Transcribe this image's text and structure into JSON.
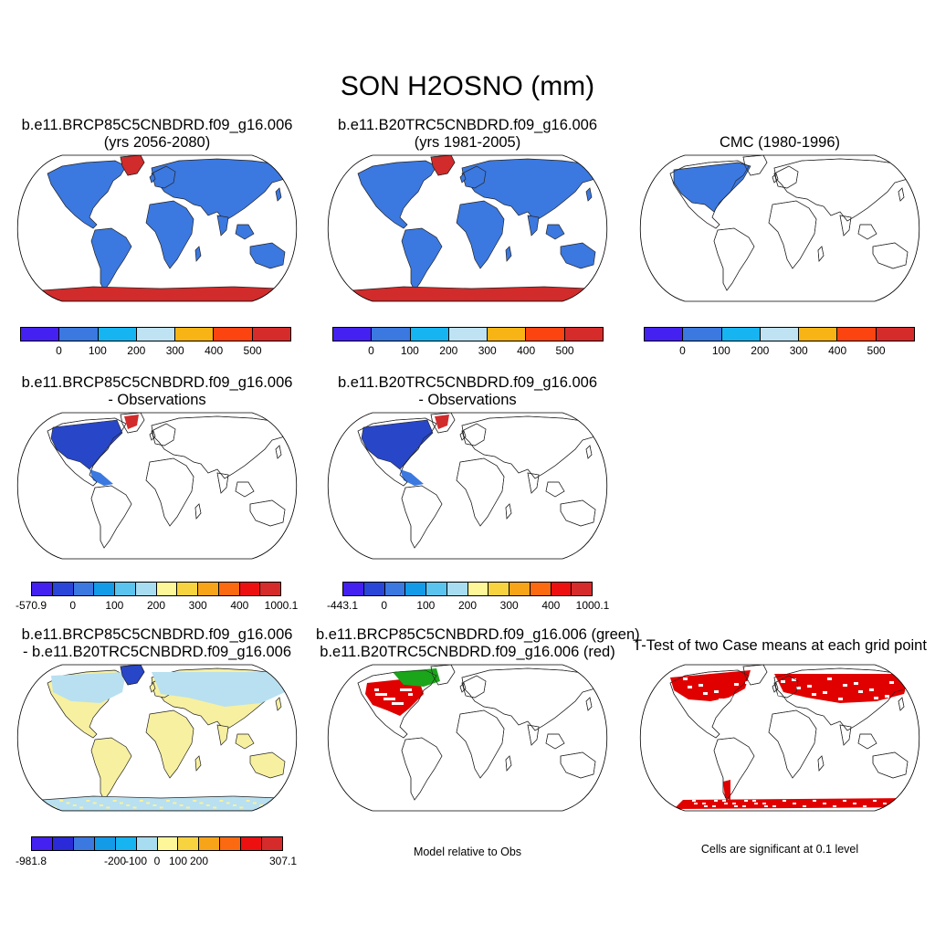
{
  "title": "SON H2OSNO (mm)",
  "colors": {
    "land_outline": "#222222",
    "continent_fill_blue": "#3b78e0",
    "ice_red": "#d22b2b",
    "diff_blue_dark": "#2846c8",
    "diff_light_blue": "#b8e0f0",
    "diff_yellow": "#f7f0a0",
    "green": "#1aa51a",
    "red": "#e00000"
  },
  "row1": {
    "panel1": {
      "line1": "b.e11.BRCP85C5CNBDRD.f09_g16.006",
      "line2": "(yrs 2056-2080)"
    },
    "panel2": {
      "line1": "b.e11.B20TRC5CNBDRD.f09_g16.006",
      "line2": "(yrs 1981-2005)"
    },
    "panel3": {
      "line1": "CMC (1980-1996)"
    },
    "colorbar": {
      "colors": [
        "#4421f0",
        "#3b78e0",
        "#16b4f0",
        "#bfe3f2",
        "#f8b415",
        "#fb4410",
        "#d62b2b"
      ],
      "labels": [
        "0",
        "100",
        "200",
        "300",
        "400",
        "500"
      ]
    }
  },
  "row2": {
    "panel1": {
      "line1": "b.e11.BRCP85C5CNBDRD.f09_g16.006",
      "line2": "- Observations"
    },
    "panel2": {
      "line1": "b.e11.B20TRC5CNBDRD.f09_g16.006",
      "line2": "- Observations"
    },
    "colorbar1": {
      "colors": [
        "#4421f0",
        "#2a46d8",
        "#3b78e0",
        "#139be8",
        "#5ac4ee",
        "#a8dcf0",
        "#fdf79a",
        "#f8d340",
        "#f8a418",
        "#fb6a10",
        "#ec1010",
        "#d62b2b"
      ],
      "labels": [
        "-570.9",
        "0",
        "100",
        "200",
        "300",
        "400",
        "1000.1"
      ]
    },
    "colorbar2": {
      "colors": [
        "#4421f0",
        "#2a46d8",
        "#3b78e0",
        "#139be8",
        "#5ac4ee",
        "#a8dcf0",
        "#fdf79a",
        "#f8d340",
        "#f8a418",
        "#fb6a10",
        "#ec1010",
        "#d62b2b"
      ],
      "labels": [
        "-443.1",
        "0",
        "100",
        "200",
        "300",
        "400",
        "1000.1"
      ]
    }
  },
  "row3": {
    "panel1": {
      "line1": "b.e11.BRCP85C5CNBDRD.f09_g16.006",
      "line2": "- b.e11.B20TRC5CNBDRD.f09_g16.006"
    },
    "panel2": {
      "line1": "b.e11.BRCP85C5CNBDRD.f09_g16.006 (green)",
      "line2": "b.e11.B20TRC5CNBDRD.f09_g16.006 (red)"
    },
    "panel3": {
      "line1": "T-Test of two Case means at each grid point"
    },
    "colorbar": {
      "colors": [
        "#4421f0",
        "#2a2ad8",
        "#3b78e0",
        "#139be8",
        "#16b4f0",
        "#a8dcf0",
        "#fdf79a",
        "#f8d340",
        "#f8a418",
        "#fb6a10",
        "#ec1010",
        "#d62b2b"
      ],
      "labels": [
        "-981.8",
        "-200",
        "-100",
        "0",
        "100",
        "200",
        "307.1"
      ]
    },
    "note2": "Model relative to Obs",
    "note3": "Cells are significant at 0.1 level"
  }
}
